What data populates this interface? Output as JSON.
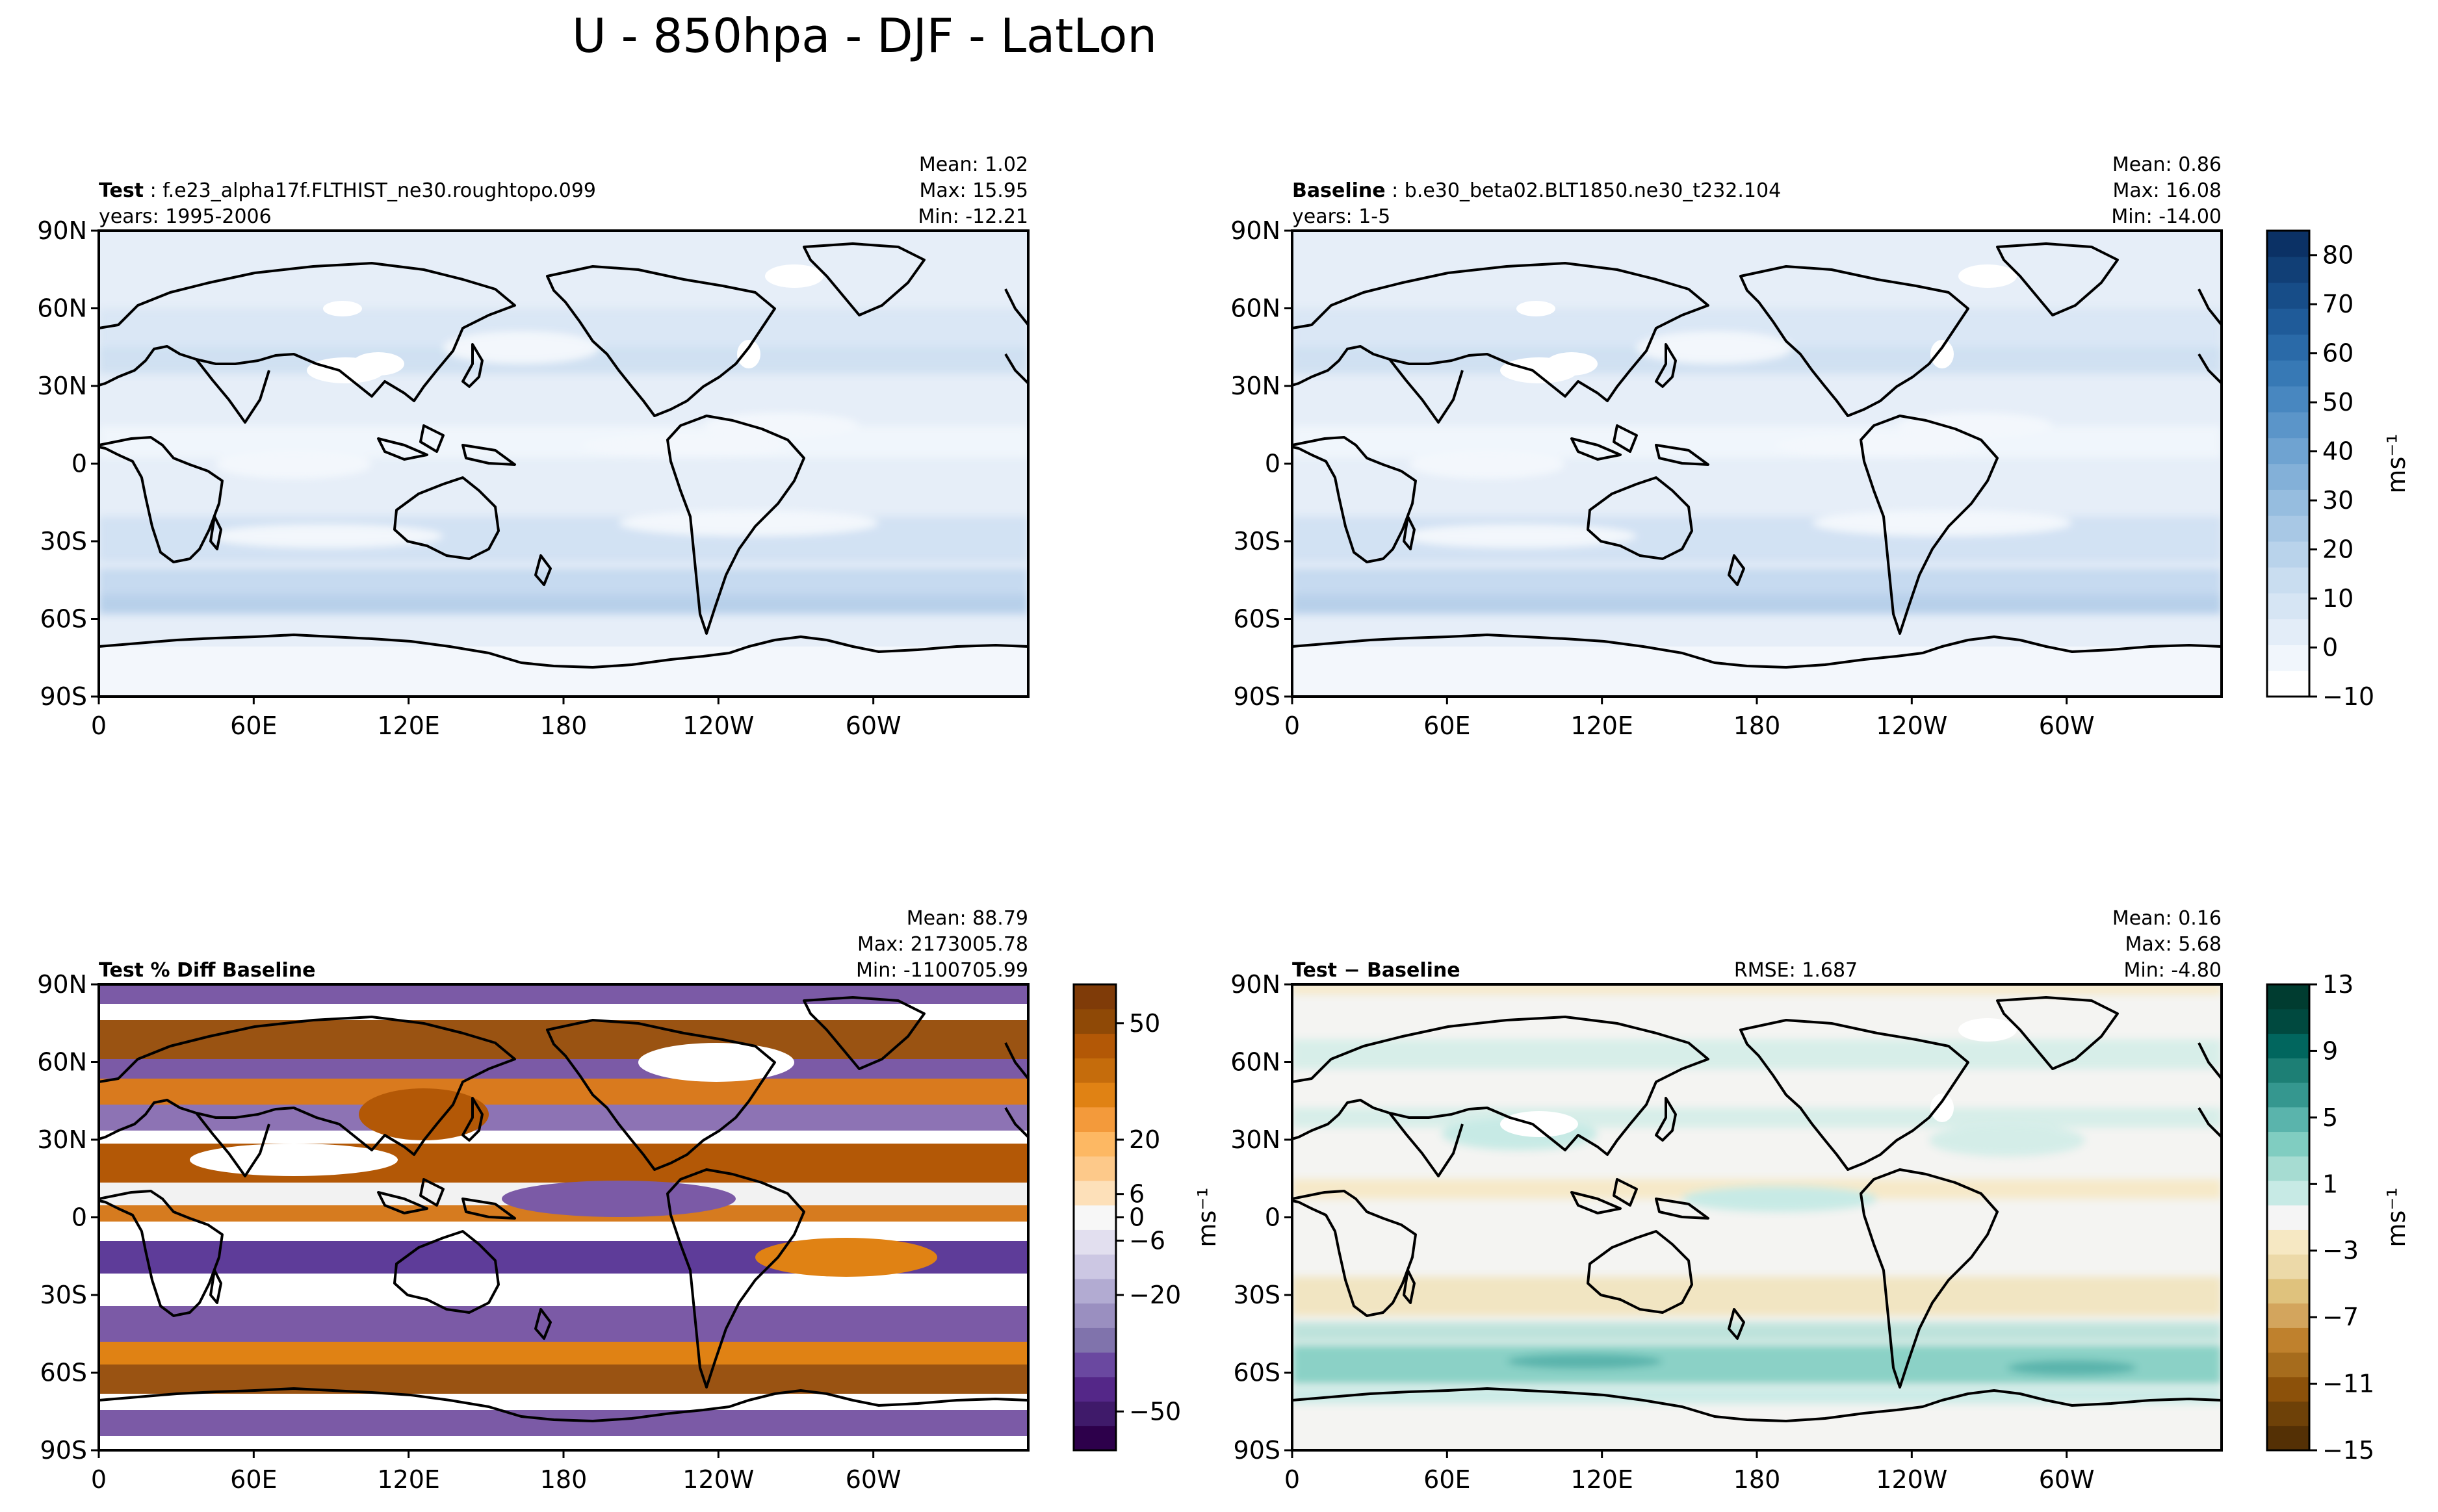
{
  "chart_data": {
    "type": "heatmap",
    "title": "U - 850hpa - DJF - LatLon",
    "x_ticks": [
      "0",
      "60E",
      "120E",
      "180",
      "120W",
      "60W"
    ],
    "y_ticks": [
      "90N",
      "60N",
      "30N",
      "0",
      "30S",
      "60S",
      "90S"
    ],
    "xlim": [
      0,
      360
    ],
    "ylim": [
      -90,
      90
    ],
    "panels": [
      {
        "id": "test",
        "case_label": "Test",
        "case_name": "f.e23_alpha17f.FLTHIST_ne30.roughtopo.099",
        "years": "years: 1995-2006",
        "mean": "Mean:  1.02",
        "max": "Max: 15.95",
        "min": "Min: -12.21",
        "rmse": "",
        "colormap": "Blues"
      },
      {
        "id": "baseline",
        "case_label": "Baseline",
        "case_name": "b.e30_beta02.BLT1850.ne30_t232.104",
        "years": "years: 1-5",
        "mean": "Mean:  0.86",
        "max": "Max: 16.08",
        "min": "Min: -14.00",
        "rmse": "",
        "colormap": "Blues"
      },
      {
        "id": "pctdiff",
        "case_label": "Test % Diff Baseline",
        "case_name": "",
        "years": "",
        "mean": "Mean: 88.79",
        "max": "Max: 2173005.78",
        "min": "Min: -1100705.99",
        "rmse": "",
        "colormap": "PuOr"
      },
      {
        "id": "diff",
        "case_label": "Test − Baseline",
        "case_name": "",
        "years": "",
        "mean": "Mean:  0.16",
        "max": "Max:  5.68",
        "min": "Min: -4.80",
        "rmse": "RMSE: 1.687",
        "colormap": "BrBG"
      }
    ],
    "colorbars": [
      {
        "id": "main",
        "unit": "ms⁻¹",
        "range": [
          -10,
          85
        ],
        "ticks": [
          "80",
          "70",
          "60",
          "50",
          "40",
          "30",
          "20",
          "10",
          "0",
          "−10"
        ]
      },
      {
        "id": "pctdiff",
        "unit": "ms⁻¹",
        "range": [
          -60,
          60
        ],
        "ticks": [
          "50",
          "20",
          "6",
          "0",
          "−6",
          "−20",
          "−50"
        ]
      },
      {
        "id": "diff",
        "unit": "ms⁻¹",
        "range": [
          -15,
          13
        ],
        "ticks": [
          "13",
          "9",
          "5",
          "1",
          "−3",
          "−7",
          "−11",
          "−15"
        ]
      }
    ]
  }
}
